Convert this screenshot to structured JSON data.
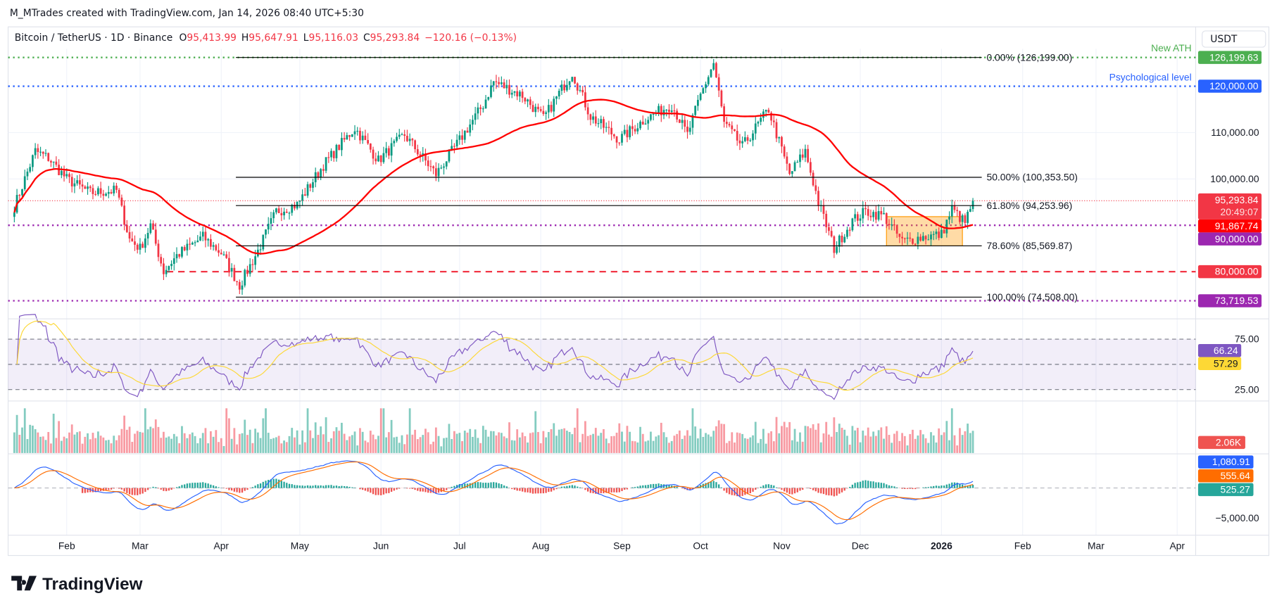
{
  "header": {
    "credit": "M_MTrades created with TradingView.com, Jan 14, 2026 08:40 UTC+5:30",
    "symbol": "Bitcoin / TetherUS · 1D · Binance",
    "o_label": "O",
    "o": "95,413.99",
    "h_label": "H",
    "h": "95,647.91",
    "l_label": "L",
    "l": "95,116.03",
    "c_label": "C",
    "c": "95,293.84",
    "change": "−120.16 (−0.13%)"
  },
  "currency_button": "USDT",
  "logo_text": "TradingView",
  "colors": {
    "up": "#089981",
    "down": "#f23645",
    "ma": "#ff0000",
    "rsi": "#7e57c2",
    "rsi_ma": "#fdd835",
    "macd": "#2962ff",
    "signal": "#ff6d00",
    "fib": "#000000",
    "ath": "#4caf50",
    "psych": "#2962ff",
    "level90k": "#9c27b0",
    "level80k": "#f23645",
    "box": "#ff9800"
  },
  "annotations": {
    "ath_label": "New ATH",
    "psych_label": "Psychological level",
    "fib": [
      {
        "label": "0.00% (126,199.00)",
        "price": 126199
      },
      {
        "label": "50.00% (100,353.50)",
        "price": 100353.5
      },
      {
        "label": "61.80% (94,253.96)",
        "price": 94253.96
      },
      {
        "label": "78.60% (85,569.87)",
        "price": 85569.87
      },
      {
        "label": "100.00% (74,508.00)",
        "price": 74508
      }
    ],
    "consolidation_box": {
      "from": "2025-12-11",
      "to": "2026-01-09",
      "low": 85569.87,
      "high": 91867.74
    }
  },
  "price_axis": {
    "ticks": [
      {
        "label": "110,000.00",
        "price": 110000
      },
      {
        "label": "100,000.00",
        "price": 100000
      }
    ],
    "badges": [
      {
        "label": "126,199.63",
        "price": 126199.63,
        "color": "#4caf50",
        "line": "dotted"
      },
      {
        "label": "120,000.00",
        "price": 120000,
        "color": "#2962ff",
        "line": "dotted"
      },
      {
        "label": "95,293.84",
        "sub": "20:49:07",
        "price": 95293.84,
        "color": "#f23645",
        "line": "dotted-thin"
      },
      {
        "label": "91,867.74",
        "price": 91867.74,
        "color": "#ff0000",
        "line": "none"
      },
      {
        "label": "90,000.00",
        "price": 90000,
        "color": "#9c27b0",
        "line": "dotted"
      },
      {
        "label": "80,000.00",
        "price": 80000,
        "color": "#f23645",
        "line": "dashed"
      },
      {
        "label": "73,719.53",
        "price": 73719.53,
        "color": "#9c27b0",
        "line": "dotted"
      }
    ]
  },
  "rsi_axis": {
    "ticks": [
      {
        "label": "75.00",
        "v": 75
      },
      {
        "label": "25.00",
        "v": 25
      }
    ],
    "rsi": "66.24",
    "rsi_ma": "57.29"
  },
  "volume_axis": {
    "last": "2.06K"
  },
  "macd_axis": {
    "tick": "−5,000.00",
    "macd": "1,080.91",
    "signal": "555.64",
    "histogram": "525.27"
  },
  "time_axis": [
    {
      "label": "Feb",
      "date": "2025-02-01"
    },
    {
      "label": "Mar",
      "date": "2025-03-01"
    },
    {
      "label": "Apr",
      "date": "2025-04-01"
    },
    {
      "label": "May",
      "date": "2025-05-01"
    },
    {
      "label": "Jun",
      "date": "2025-06-01"
    },
    {
      "label": "Jul",
      "date": "2025-07-01"
    },
    {
      "label": "Aug",
      "date": "2025-08-01"
    },
    {
      "label": "Sep",
      "date": "2025-09-01"
    },
    {
      "label": "Oct",
      "date": "2025-10-01"
    },
    {
      "label": "Nov",
      "date": "2025-11-01"
    },
    {
      "label": "Dec",
      "date": "2025-12-01"
    },
    {
      "label": "2026",
      "date": "2026-01-01",
      "bold": true
    },
    {
      "label": "Feb",
      "date": "2026-02-01"
    },
    {
      "label": "Mar",
      "date": "2026-03-01"
    },
    {
      "label": "Apr",
      "date": "2026-04-01"
    }
  ],
  "chart_data": {
    "type": "candlestick",
    "title": "Bitcoin / TetherUS · 1D · Binance",
    "indicators": [
      "50 MA",
      "RSI 14",
      "Volume",
      "MACD"
    ],
    "ylim": [
      70000,
      130000
    ],
    "approx_closes": [
      [
        "2025-01-12",
        94000
      ],
      [
        "2025-01-20",
        106000
      ],
      [
        "2025-01-25",
        104500
      ],
      [
        "2025-02-01",
        100000
      ],
      [
        "2025-02-10",
        97000
      ],
      [
        "2025-02-20",
        97500
      ],
      [
        "2025-02-25",
        87000
      ],
      [
        "2025-03-01",
        85000
      ],
      [
        "2025-03-05",
        90000
      ],
      [
        "2025-03-10",
        80000
      ],
      [
        "2025-03-15",
        83500
      ],
      [
        "2025-03-25",
        87500
      ],
      [
        "2025-04-01",
        84000
      ],
      [
        "2025-04-08",
        77000
      ],
      [
        "2025-04-15",
        84500
      ],
      [
        "2025-04-22",
        93000
      ],
      [
        "2025-04-30",
        94500
      ],
      [
        "2025-05-10",
        103000
      ],
      [
        "2025-05-22",
        111000
      ],
      [
        "2025-05-31",
        104000
      ],
      [
        "2025-06-10",
        109500
      ],
      [
        "2025-06-22",
        101000
      ],
      [
        "2025-06-30",
        107500
      ],
      [
        "2025-07-10",
        116000
      ],
      [
        "2025-07-14",
        121000
      ],
      [
        "2025-07-25",
        118000
      ],
      [
        "2025-08-02",
        113000
      ],
      [
        "2025-08-13",
        123000
      ],
      [
        "2025-08-20",
        113500
      ],
      [
        "2025-08-31",
        108500
      ],
      [
        "2025-09-10",
        113000
      ],
      [
        "2025-09-20",
        116000
      ],
      [
        "2025-09-26",
        109500
      ],
      [
        "2025-10-01",
        118000
      ],
      [
        "2025-10-06",
        125000
      ],
      [
        "2025-10-10",
        112000
      ],
      [
        "2025-10-17",
        107000
      ],
      [
        "2025-10-27",
        115000
      ],
      [
        "2025-11-04",
        101000
      ],
      [
        "2025-11-10",
        106000
      ],
      [
        "2025-11-15",
        95000
      ],
      [
        "2025-11-21",
        85000
      ],
      [
        "2025-11-28",
        91000
      ],
      [
        "2025-12-03",
        93000
      ],
      [
        "2025-12-10",
        92000
      ],
      [
        "2025-12-17",
        86500
      ],
      [
        "2025-12-25",
        87500
      ],
      [
        "2026-01-01",
        88000
      ],
      [
        "2026-01-05",
        93500
      ],
      [
        "2026-01-10",
        90500
      ],
      [
        "2026-01-13",
        95293.84
      ]
    ]
  }
}
